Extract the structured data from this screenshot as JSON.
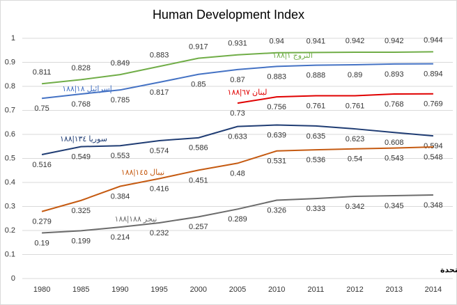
{
  "chart_data": {
    "type": "line",
    "title": "Human Development Index",
    "categories": [
      "1980",
      "1985",
      "1990",
      "1995",
      "2000",
      "2005",
      "2010",
      "2011",
      "2012",
      "2013",
      "2014"
    ],
    "series": [
      {
        "name": "النروج ١|١٨٨",
        "color": "#70ad47",
        "values": [
          0.811,
          0.828,
          0.849,
          0.883,
          0.917,
          0.931,
          0.94,
          0.941,
          0.942,
          0.942,
          0.944
        ]
      },
      {
        "name": "إسرائيل ١٨|١٨٨",
        "color": "#4472c4",
        "values": [
          0.75,
          0.768,
          0.785,
          0.817,
          0.85,
          0.87,
          0.883,
          0.888,
          0.89,
          0.893,
          0.894
        ]
      },
      {
        "name": "لبنان ٦٧|١٨٨",
        "color": "#e00000",
        "values": [
          null,
          null,
          null,
          null,
          null,
          0.73,
          0.756,
          0.761,
          0.761,
          0.768,
          0.769
        ]
      },
      {
        "name": "سوريا ١٣٤|١٨٨",
        "color": "#1f3c73",
        "values": [
          0.516,
          0.549,
          0.553,
          0.574,
          0.586,
          0.633,
          0.639,
          0.635,
          0.623,
          0.608,
          0.594
        ]
      },
      {
        "name": "نيبال ١٤٥|١٨٨",
        "color": "#c55a11",
        "values": [
          0.279,
          0.325,
          0.384,
          0.416,
          0.451,
          0.48,
          0.531,
          0.536,
          0.54,
          0.543,
          0.548
        ]
      },
      {
        "name": "نيجر ١٨٨|١٨٨",
        "color": "#6b6b6b",
        "values": [
          0.19,
          0.199,
          0.214,
          0.232,
          0.257,
          0.289,
          0.326,
          0.333,
          0.342,
          0.345,
          0.348
        ]
      }
    ],
    "ylim": [
      0,
      1
    ],
    "yticks": [
      0,
      0.1,
      0.2,
      0.3,
      0.4,
      0.5,
      0.6,
      0.7,
      0.8,
      0.9,
      1
    ],
    "grid": true,
    "source": "بروفسور جاسم عجاقة | مصدر: الأمم المتحدة"
  }
}
